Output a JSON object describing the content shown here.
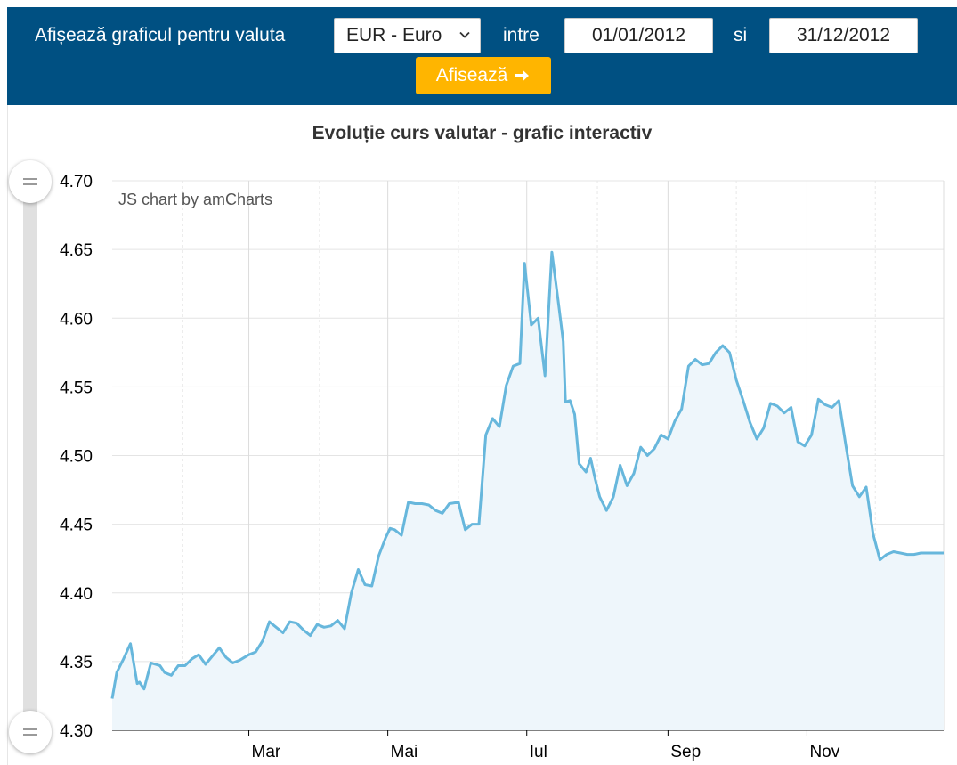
{
  "filter": {
    "label": "Afișează graficul pentru valuta",
    "currency_selected": "EUR - Euro",
    "between_label": "intre",
    "start_date": "01/01/2012",
    "and_label": "si",
    "end_date": "31/12/2012",
    "show_button_label": "Afisează",
    "bar_color": "#005082",
    "button_color": "#ffb500"
  },
  "chart_title": "Evoluție curs valutar - grafic interactiv",
  "credit": "JS chart by amCharts",
  "chart_data": {
    "type": "area",
    "title": "Evoluție curs valutar - grafic interactiv",
    "xlabel": "",
    "ylabel": "",
    "ylim": [
      4.3,
      4.7
    ],
    "y_ticks": [
      "4.70",
      "4.65",
      "4.60",
      "4.55",
      "4.50",
      "4.45",
      "4.40",
      "4.35",
      "4.30"
    ],
    "x_ticks": [
      "Mar",
      "Mai",
      "Iul",
      "Sep",
      "Nov"
    ],
    "x_range": [
      "2012-01-01",
      "2012-12-31"
    ],
    "grid": true,
    "line_color": "#67b7dc",
    "fill_color": "#eef6fb",
    "series": [
      {
        "x": [
          "2012-01-01",
          "2012-01-03",
          "2012-01-06",
          "2012-01-09",
          "2012-01-12",
          "2012-01-13",
          "2012-01-15",
          "2012-01-18",
          "2012-01-20",
          "2012-01-22",
          "2012-01-24",
          "2012-01-27",
          "2012-01-30",
          "2012-02-02",
          "2012-02-05",
          "2012-02-08",
          "2012-02-11",
          "2012-02-14",
          "2012-02-17",
          "2012-02-20",
          "2012-02-23",
          "2012-02-26",
          "2012-03-01",
          "2012-03-04",
          "2012-03-07",
          "2012-03-10",
          "2012-03-13",
          "2012-03-16",
          "2012-03-19",
          "2012-03-22",
          "2012-03-25",
          "2012-03-28",
          "2012-03-31",
          "2012-04-03",
          "2012-04-06",
          "2012-04-09",
          "2012-04-12",
          "2012-04-15",
          "2012-04-18",
          "2012-04-21",
          "2012-04-24",
          "2012-04-27",
          "2012-04-30",
          "2012-05-02",
          "2012-05-04",
          "2012-05-07",
          "2012-05-10",
          "2012-05-13",
          "2012-05-16",
          "2012-05-19",
          "2012-05-22",
          "2012-05-25",
          "2012-05-28",
          "2012-06-01",
          "2012-06-04",
          "2012-06-07",
          "2012-06-10",
          "2012-06-13",
          "2012-06-16",
          "2012-06-19",
          "2012-06-22",
          "2012-06-25",
          "2012-06-28",
          "2012-06-30",
          "2012-07-03",
          "2012-07-06",
          "2012-07-09",
          "2012-07-12",
          "2012-07-15",
          "2012-07-17",
          "2012-07-18",
          "2012-07-20",
          "2012-07-22",
          "2012-07-24",
          "2012-07-27",
          "2012-07-29",
          "2012-07-31",
          "2012-08-02",
          "2012-08-05",
          "2012-08-08",
          "2012-08-11",
          "2012-08-14",
          "2012-08-17",
          "2012-08-20",
          "2012-08-23",
          "2012-08-26",
          "2012-08-29",
          "2012-09-01",
          "2012-09-04",
          "2012-09-07",
          "2012-09-10",
          "2012-09-13",
          "2012-09-16",
          "2012-09-19",
          "2012-09-22",
          "2012-09-25",
          "2012-09-28",
          "2012-10-01",
          "2012-10-04",
          "2012-10-07",
          "2012-10-10",
          "2012-10-13",
          "2012-10-16",
          "2012-10-19",
          "2012-10-22",
          "2012-10-25",
          "2012-10-28",
          "2012-10-31",
          "2012-11-03",
          "2012-11-06",
          "2012-11-09",
          "2012-11-12",
          "2012-11-15",
          "2012-11-18",
          "2012-11-21",
          "2012-11-24",
          "2012-11-27",
          "2012-11-30",
          "2012-12-03",
          "2012-12-06",
          "2012-12-09",
          "2012-12-12",
          "2012-12-15",
          "2012-12-18",
          "2012-12-21",
          "2012-12-24",
          "2012-12-27",
          "2012-12-31"
        ],
        "y": [
          4.323,
          4.342,
          4.352,
          4.363,
          4.334,
          4.335,
          4.33,
          4.349,
          4.348,
          4.347,
          4.342,
          4.34,
          4.347,
          4.347,
          4.352,
          4.355,
          4.348,
          4.354,
          4.36,
          4.353,
          4.349,
          4.351,
          4.355,
          4.357,
          4.365,
          4.379,
          4.375,
          4.371,
          4.379,
          4.378,
          4.373,
          4.369,
          4.377,
          4.375,
          4.376,
          4.38,
          4.374,
          4.4,
          4.417,
          4.406,
          4.405,
          4.427,
          4.44,
          4.447,
          4.446,
          4.442,
          4.466,
          4.465,
          4.465,
          4.464,
          4.46,
          4.458,
          4.465,
          4.466,
          4.446,
          4.45,
          4.45,
          4.515,
          4.527,
          4.521,
          4.551,
          4.565,
          4.567,
          4.64,
          4.595,
          4.6,
          4.558,
          4.648,
          4.61,
          4.583,
          4.539,
          4.54,
          4.53,
          4.494,
          4.488,
          4.498,
          4.483,
          4.47,
          4.46,
          4.47,
          4.493,
          4.478,
          4.487,
          4.506,
          4.5,
          4.505,
          4.515,
          4.512,
          4.525,
          4.534,
          4.565,
          4.57,
          4.566,
          4.567,
          4.575,
          4.58,
          4.575,
          4.555,
          4.54,
          4.524,
          4.512,
          4.52,
          4.538,
          4.536,
          4.531,
          4.535,
          4.51,
          4.507,
          4.515,
          4.541,
          4.537,
          4.535,
          4.54,
          4.508,
          4.478,
          4.47,
          4.477,
          4.443,
          4.424,
          4.428,
          4.43,
          4.429,
          4.428,
          4.428,
          4.429,
          4.429,
          4.429,
          4.429
        ]
      }
    ]
  }
}
